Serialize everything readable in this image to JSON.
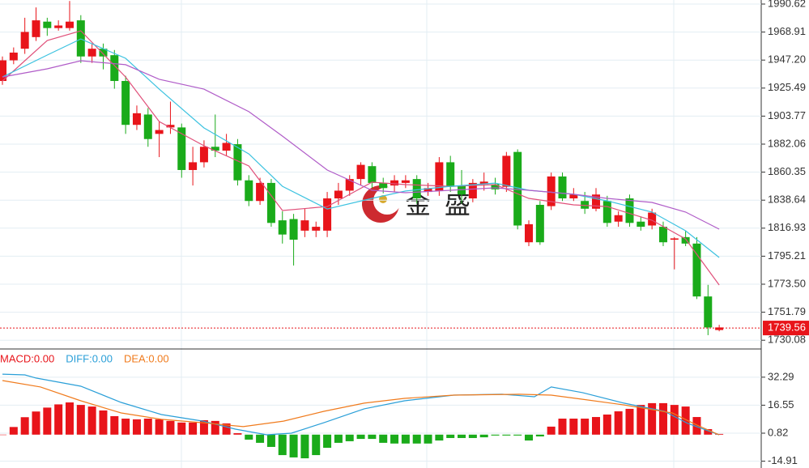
{
  "chart_data": {
    "type": "candlestick",
    "up_color": "#e8141a",
    "down_color": "#1aab1a",
    "grid": true,
    "watermark": "金 盛",
    "open": [
      1931,
      1947,
      1956,
      1965,
      1977,
      1972,
      1972,
      1978,
      1950,
      1956,
      1951,
      1931,
      1897,
      1905,
      1890,
      1895,
      1895,
      1862,
      1868,
      1880,
      1877,
      1882,
      1854,
      1838,
      1852,
      1823,
      1824,
      1815,
      1815,
      1815,
      1840,
      1846,
      1855,
      1865,
      1852,
      1850,
      1852,
      1855,
      1845,
      1846,
      1868,
      1850,
      1840,
      1851,
      1851,
      1849,
      1876,
      1806,
      1835,
      1834,
      1857,
      1840,
      1838,
      1832,
      1838,
      1822,
      1840,
      1822,
      1819,
      1818,
      1808,
      1810,
      1805,
      1764,
      1738
    ],
    "high": [
      1950,
      1957,
      1980,
      1988,
      1980,
      1978,
      1993,
      1982,
      1960,
      1960,
      1955,
      1935,
      1912,
      1910,
      1900,
      1915,
      1898,
      1880,
      1885,
      1905,
      1890,
      1886,
      1858,
      1856,
      1855,
      1830,
      1828,
      1832,
      1822,
      1845,
      1852,
      1858,
      1868,
      1868,
      1856,
      1858,
      1858,
      1858,
      1852,
      1872,
      1873,
      1862,
      1855,
      1860,
      1856,
      1876,
      1878,
      1823,
      1838,
      1860,
      1860,
      1848,
      1845,
      1848,
      1842,
      1830,
      1843,
      1826,
      1832,
      1822,
      1810,
      1815,
      1810,
      1773,
      1742
    ],
    "low": [
      1928,
      1944,
      1952,
      1962,
      1966,
      1970,
      1970,
      1945,
      1945,
      1940,
      1925,
      1890,
      1893,
      1880,
      1872,
      1890,
      1856,
      1850,
      1864,
      1872,
      1873,
      1850,
      1834,
      1835,
      1818,
      1805,
      1788,
      1810,
      1810,
      1810,
      1835,
      1842,
      1850,
      1848,
      1844,
      1845,
      1848,
      1836,
      1842,
      1842,
      1845,
      1836,
      1837,
      1846,
      1843,
      1845,
      1816,
      1803,
      1804,
      1831,
      1838,
      1838,
      1828,
      1830,
      1818,
      1818,
      1818,
      1815,
      1816,
      1803,
      1785,
      1803,
      1762,
      1734,
      1737
    ],
    "close": [
      1947,
      1953,
      1969,
      1978,
      1972,
      1974,
      1977,
      1950,
      1956,
      1950,
      1931,
      1897,
      1906,
      1886,
      1893,
      1897,
      1862,
      1868,
      1880,
      1877,
      1883,
      1854,
      1838,
      1852,
      1821,
      1812,
      1808,
      1823,
      1818,
      1840,
      1846,
      1855,
      1866,
      1852,
      1848,
      1854,
      1854,
      1840,
      1848,
      1868,
      1849,
      1843,
      1852,
      1853,
      1847,
      1873,
      1819,
      1820,
      1806,
      1857,
      1840,
      1843,
      1832,
      1843,
      1821,
      1827,
      1821,
      1818,
      1829,
      1806,
      1809,
      1805,
      1764,
      1740,
      1740
    ],
    "ma_lines": [
      {
        "color": "#e0507a",
        "x": [
          0,
          4,
          7,
          11,
          14,
          18,
          22,
          25,
          29,
          33,
          36,
          40,
          44,
          47,
          51,
          54,
          58,
          61,
          64
        ],
        "values": [
          1931.0,
          1962.4,
          1969.9,
          1934.1,
          1899.6,
          1880.8,
          1865.1,
          1830.6,
          1833.7,
          1852.6,
          1850.7,
          1849.4,
          1850.7,
          1840.0,
          1835.0,
          1833.7,
          1823.1,
          1808.6,
          1772.9
        ]
      },
      {
        "color": "#3cc2e0",
        "x": [
          0,
          4,
          7,
          11,
          14,
          18,
          22,
          25,
          29,
          33,
          36,
          40,
          44,
          47,
          51,
          54,
          58,
          61,
          64
        ],
        "values": [
          1934.1,
          1951.1,
          1963.6,
          1948.6,
          1924.7,
          1894.6,
          1874.5,
          1849.4,
          1831.8,
          1840.0,
          1845.7,
          1849.4,
          1851.9,
          1846.3,
          1843.2,
          1838.1,
          1829.4,
          1814.9,
          1794.2
        ]
      },
      {
        "color": "#b05cc8",
        "x": [
          0,
          4,
          7,
          11,
          14,
          18,
          22,
          25,
          29,
          33,
          36,
          40,
          44,
          47,
          51,
          54,
          58,
          61,
          64
        ],
        "values": [
          1934.1,
          1940.4,
          1946.7,
          1943.6,
          1932.3,
          1924.7,
          1907.2,
          1888.3,
          1862.0,
          1846.3,
          1844.4,
          1846.3,
          1848.2,
          1846.3,
          1843.2,
          1840.0,
          1836.9,
          1829.4,
          1816.2
        ]
      }
    ],
    "ylim": [
      1723.93,
      1993.76
    ],
    "yticks": [
      1990.62,
      1968.91,
      {
        "value": 1947.2,
        "label": "1947.20"
      },
      1925.49,
      1903.77,
      1882.06,
      1860.35,
      1838.64,
      1816.93,
      1795.21,
      {
        "value": 1773.5,
        "label": "1773.50"
      },
      1751.79,
      1730.08
    ],
    "last_price": 1739.56,
    "macd": {
      "ylim": [
        -18.75,
        47.69
      ],
      "yticks": [
        32.29,
        16.55,
        0.82,
        -14.91
      ],
      "legend": [
        {
          "text": "MACD:0.00",
          "color": "#e8141a"
        },
        {
          "text": "DIFF:0.00",
          "color": "#2a9fd8"
        },
        {
          "text": "DEA:0.00",
          "color": "#f07b1d"
        }
      ],
      "histogram": [
        0,
        4.3,
        9.8,
        13.0,
        15.2,
        17.0,
        18.1,
        16.7,
        15.8,
        13.6,
        10.4,
        9.0,
        8.6,
        9.0,
        8.6,
        7.7,
        6.8,
        6.8,
        8.1,
        7.7,
        6.3,
        0.8,
        -2.8,
        -4.6,
        -6.9,
        -11.5,
        -12.8,
        -13.3,
        -11.5,
        -7.4,
        -4.6,
        -3.7,
        -2.4,
        -2.4,
        -4.6,
        -5.0,
        -5.0,
        -5.0,
        -5.0,
        -3.3,
        -1.9,
        -1.9,
        -1.9,
        -1.5,
        -0.5,
        -0.5,
        -0.5,
        -3.3,
        -1.0,
        4.5,
        9.0,
        9.0,
        9.0,
        9.9,
        11.3,
        13.1,
        14.5,
        16.7,
        17.7,
        17.7,
        16.7,
        15.8,
        9.9,
        3.1,
        0.4
      ],
      "diff": {
        "color": "#2a9fd8",
        "x": [
          0,
          2.0,
          3.0,
          7.0,
          10.6,
          14.2,
          17.9,
          20.8,
          23.6,
          25.8,
          28.7,
          32.3,
          35.9,
          40.3,
          44.6,
          47.5,
          49.0,
          51.8,
          55.5,
          59.1,
          61.2,
          64
        ],
        "values": [
          34.0,
          33.6,
          31.8,
          27.2,
          18.1,
          11.3,
          7.6,
          3.1,
          -0.1,
          0.8,
          6.7,
          14.5,
          19.0,
          22.2,
          22.7,
          21.3,
          26.8,
          23.6,
          17.7,
          13.1,
          6.3,
          -0.1
        ]
      },
      "dea": {
        "color": "#f07b1d",
        "x": [
          0,
          3.4,
          7.0,
          10.6,
          14.2,
          17.9,
          21.5,
          25.1,
          28.7,
          32.3,
          35.9,
          40.3,
          46.1,
          49.0,
          51.8,
          55.5,
          59.8,
          62.0,
          64
        ],
        "values": [
          30.4,
          26.8,
          19.0,
          12.2,
          8.6,
          6.7,
          4.5,
          7.6,
          13.1,
          17.7,
          20.4,
          22.2,
          22.7,
          22.2,
          19.9,
          16.7,
          12.2,
          5.4,
          -0.1
        ]
      }
    }
  }
}
